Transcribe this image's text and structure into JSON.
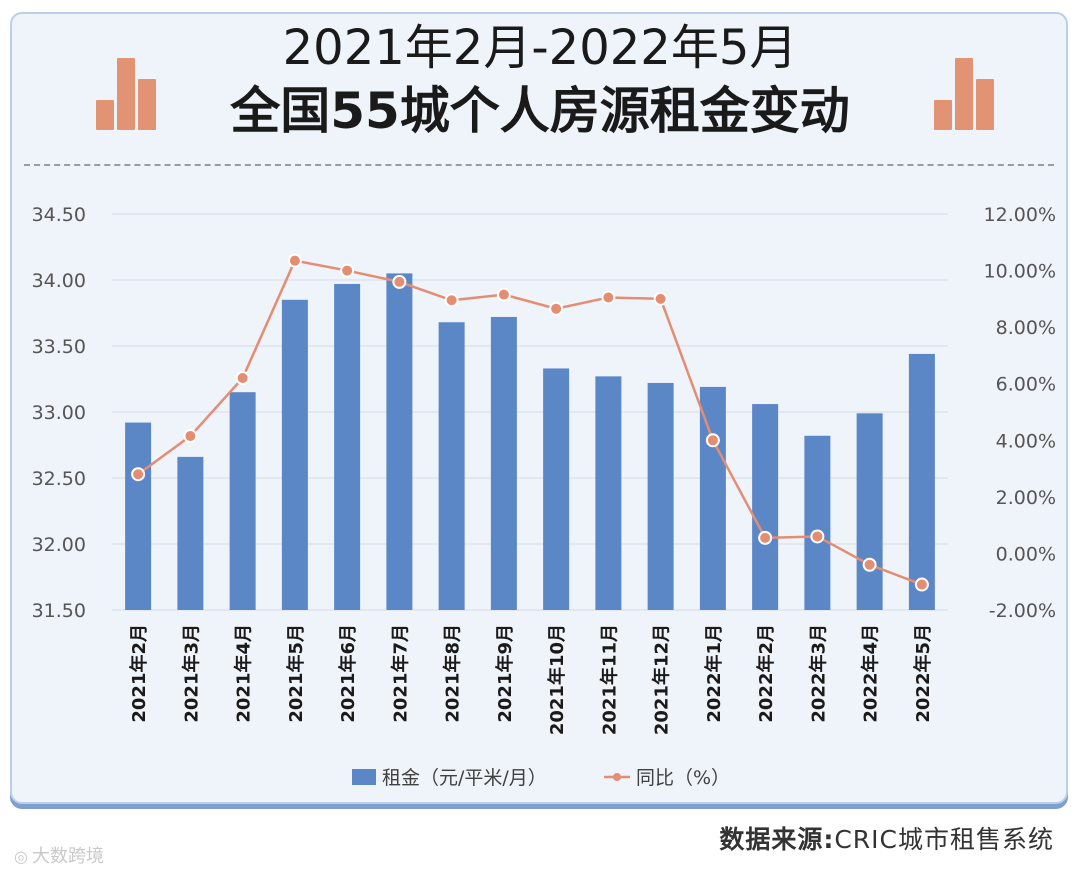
{
  "title": {
    "line1": "2021年2月-2022年5月",
    "line2": "全国55城个人房源租金变动"
  },
  "source": {
    "label": "数据来源:",
    "text": "CRIC城市租售系统"
  },
  "watermark": {
    "icon": "logo-icon",
    "text": "大数跨境"
  },
  "colors": {
    "bar": "#5b87c7",
    "line": "#e48d73",
    "card_bg": "#eff3fa",
    "deco": "#e29373"
  },
  "chart_data": {
    "type": "bar",
    "categories": [
      "2021年2月",
      "2021年3月",
      "2021年4月",
      "2021年5月",
      "2021年6月",
      "2021年7月",
      "2021年8月",
      "2021年9月",
      "2021年10月",
      "2021年11月",
      "2021年12月",
      "2022年1月",
      "2022年2月",
      "2022年3月",
      "2022年4月",
      "2022年5月"
    ],
    "series": [
      {
        "name": "租金（元/平米/月）",
        "type": "bar",
        "axis": "left",
        "values": [
          32.92,
          32.66,
          33.15,
          33.85,
          33.97,
          34.05,
          33.68,
          33.72,
          33.33,
          33.27,
          33.22,
          33.19,
          33.06,
          32.82,
          32.99,
          33.44
        ]
      },
      {
        "name": "同比（%）",
        "type": "line",
        "axis": "right",
        "values": [
          2.8,
          4.15,
          6.2,
          10.35,
          10.0,
          9.6,
          8.95,
          9.15,
          8.65,
          9.05,
          9.0,
          4.0,
          0.55,
          0.6,
          -0.4,
          -1.1
        ]
      }
    ],
    "ylim_left": [
      31.5,
      34.5
    ],
    "yticks_left": [
      "31.50",
      "32.00",
      "32.50",
      "33.00",
      "33.50",
      "34.00",
      "34.50"
    ],
    "ylim_right": [
      -2,
      12
    ],
    "yticks_right": [
      "-2.00%",
      "0.00%",
      "2.00%",
      "4.00%",
      "6.00%",
      "8.00%",
      "10.00%",
      "12.00%"
    ],
    "grid": true,
    "legend_position": "bottom"
  }
}
